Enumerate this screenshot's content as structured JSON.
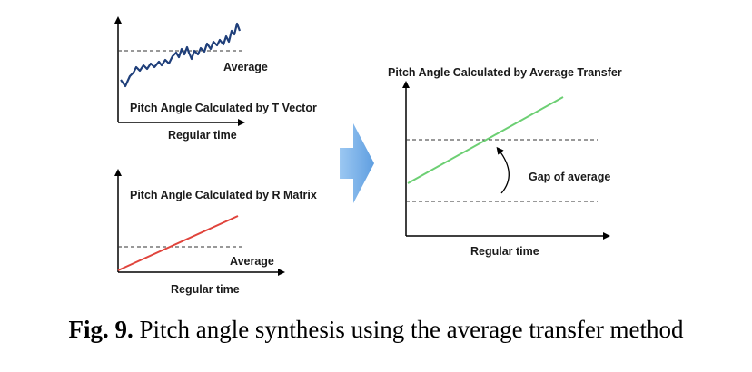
{
  "panels": {
    "t_vector": {
      "title": "Pitch Angle Calculated by T Vector",
      "xlabel": "Regular time",
      "average_label": "Average"
    },
    "r_matrix": {
      "title": "Pitch Angle Calculated by R Matrix",
      "xlabel": "Regular time",
      "average_label": "Average"
    },
    "average_transfer": {
      "title": "Pitch Angle Calculated by Average Transfer",
      "xlabel": "Regular time",
      "gap_label": "Gap of average"
    }
  },
  "caption": {
    "prefix": "Fig. 9.",
    "text": "Pitch angle synthesis using the average transfer method"
  },
  "colors": {
    "t_vector_line": "#1f3f7a",
    "r_matrix_line": "#e0443c",
    "average_transfer_line": "#6ccf73",
    "arrow_fill": "#7fb3e8",
    "axis": "#000000",
    "dashed": "#333333"
  }
}
